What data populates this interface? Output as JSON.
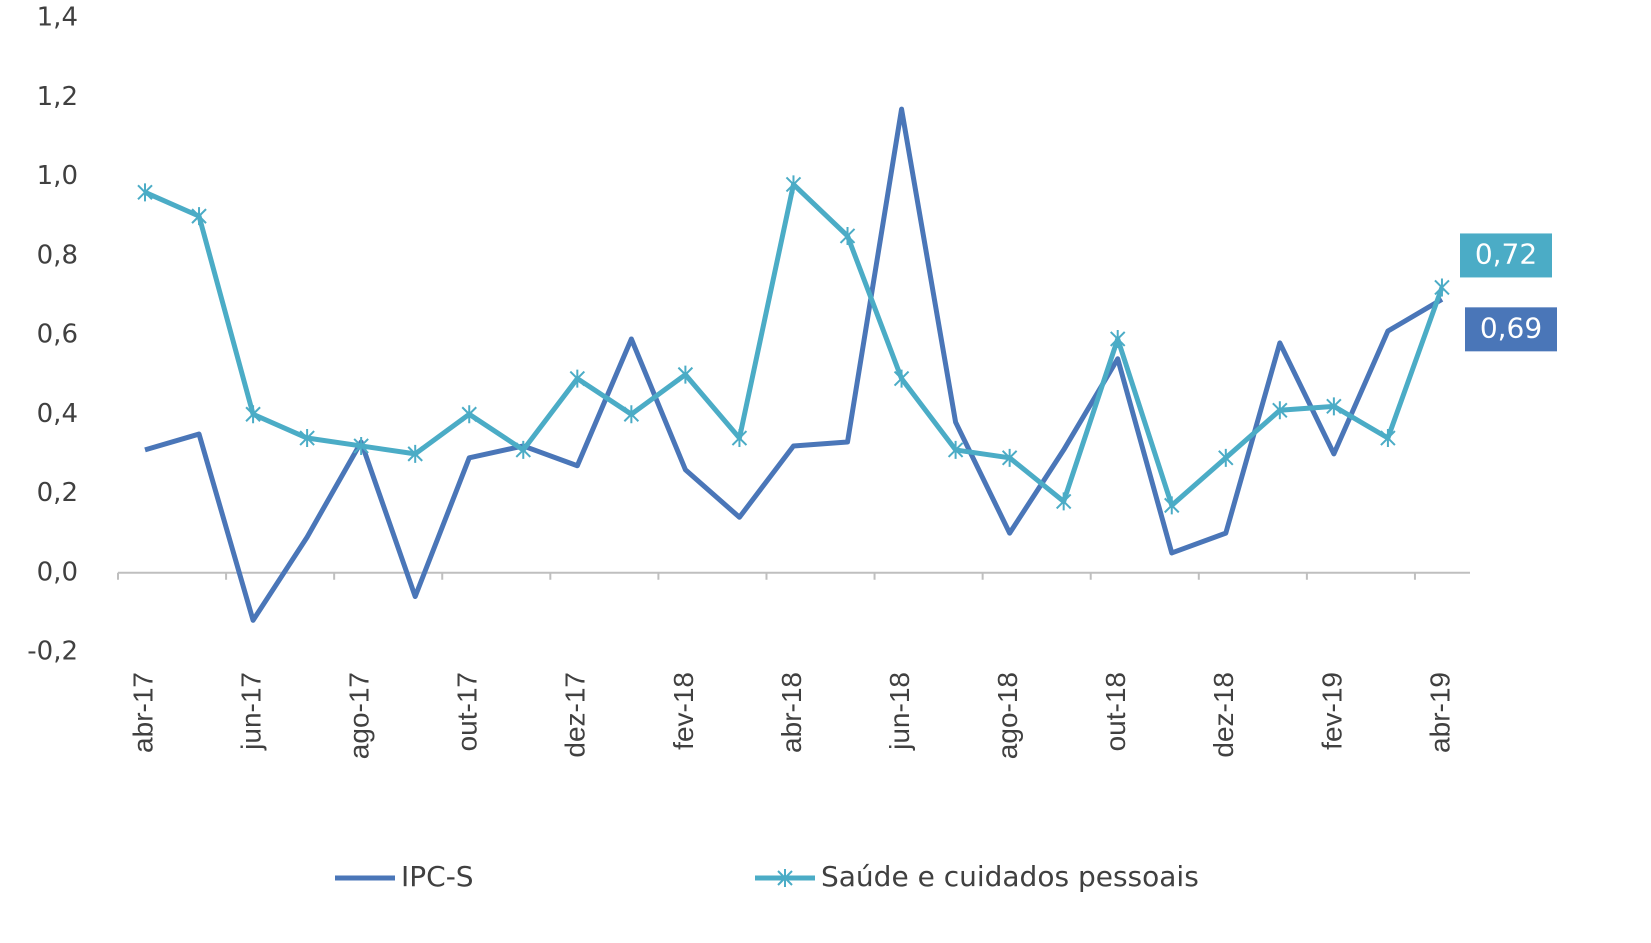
{
  "chart_data": {
    "type": "line",
    "categories": [
      "abr-17",
      null,
      "jun-17",
      null,
      "ago-17",
      null,
      "out-17",
      null,
      "dez-17",
      null,
      "fev-18",
      null,
      "abr-18",
      null,
      "jun-18",
      null,
      "ago-18",
      null,
      "out-18",
      null,
      "dez-18",
      null,
      "fev-19",
      null,
      "abr-19"
    ],
    "ylim": [
      -0.2,
      1.4
    ],
    "yticks": [
      {
        "value": -0.2,
        "label": "-0,2"
      },
      {
        "value": 0,
        "label": "0,0"
      },
      {
        "value": 0.2,
        "label": "0,2"
      },
      {
        "value": 0.4,
        "label": "0,4"
      },
      {
        "value": 0.6,
        "label": "0,6"
      },
      {
        "value": 0.8,
        "label": "0,8"
      },
      {
        "value": 1.0,
        "label": "1,0"
      },
      {
        "value": 1.2,
        "label": "1,2"
      },
      {
        "value": 1.4,
        "label": "1,4"
      }
    ],
    "legend": "bottom",
    "series": [
      {
        "name": "IPC-S",
        "color": "#4a76b8",
        "marker": "none",
        "values": [
          0.31,
          0.35,
          -0.12,
          0.09,
          0.33,
          -0.06,
          0.29,
          0.32,
          0.27,
          0.59,
          0.26,
          0.14,
          0.32,
          0.33,
          1.17,
          0.38,
          0.1,
          0.31,
          0.54,
          0.05,
          0.1,
          0.58,
          0.3,
          0.61,
          0.69
        ],
        "value_labels": [
          null,
          null,
          null,
          null,
          null,
          null,
          null,
          null,
          null,
          null,
          null,
          null,
          null,
          null,
          null,
          null,
          null,
          null,
          null,
          null,
          null,
          null,
          null,
          null,
          "0,69"
        ]
      },
      {
        "name": "Saúde e cuidados pessoais",
        "color": "#4bacc6",
        "marker": "asterisk",
        "values": [
          0.96,
          0.9,
          0.4,
          0.34,
          0.32,
          0.3,
          0.4,
          0.31,
          0.49,
          0.4,
          0.5,
          0.34,
          0.98,
          0.85,
          0.49,
          0.31,
          0.29,
          0.18,
          0.59,
          0.17,
          0.29,
          0.41,
          0.42,
          0.34,
          0.72
        ],
        "value_labels": [
          null,
          null,
          null,
          null,
          null,
          null,
          null,
          null,
          null,
          null,
          null,
          null,
          null,
          null,
          null,
          null,
          null,
          null,
          null,
          null,
          null,
          null,
          null,
          null,
          "0,72"
        ]
      }
    ]
  }
}
